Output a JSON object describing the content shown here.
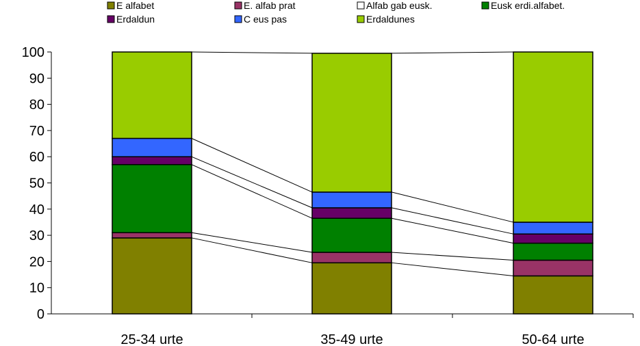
{
  "chart_data": {
    "type": "bar",
    "stacked": true,
    "categories": [
      "25-34 urte",
      "35-49 urte",
      "50-64 urte"
    ],
    "series": [
      {
        "name": "E alfabet",
        "color": "#808000",
        "values": [
          29,
          19.5,
          14.5
        ]
      },
      {
        "name": "E. alfab prat",
        "color": "#993366",
        "values": [
          2,
          4,
          6
        ]
      },
      {
        "name": "Alfab gab eusk.",
        "color": "#ffffff",
        "values": [
          0,
          0,
          0
        ]
      },
      {
        "name": "Eusk erdi.alfabet.",
        "color": "#008000",
        "values": [
          26,
          13,
          6.5
        ]
      },
      {
        "name": "Erdaldun",
        "color": "#660066",
        "values": [
          3,
          4,
          3.5
        ]
      },
      {
        "name": "C eus pas",
        "color": "#3366ff",
        "values": [
          7,
          6,
          4.5
        ]
      },
      {
        "name": "Erdaldunes",
        "color": "#99cc00",
        "values": [
          33,
          53,
          65
        ]
      }
    ],
    "ylim": [
      0,
      100
    ],
    "yticks": [
      "0",
      "10",
      "20",
      "30",
      "40",
      "50",
      "60",
      "70",
      "80",
      "90",
      "100"
    ],
    "grid": false,
    "legend_position": "top",
    "connector_lines": true
  }
}
